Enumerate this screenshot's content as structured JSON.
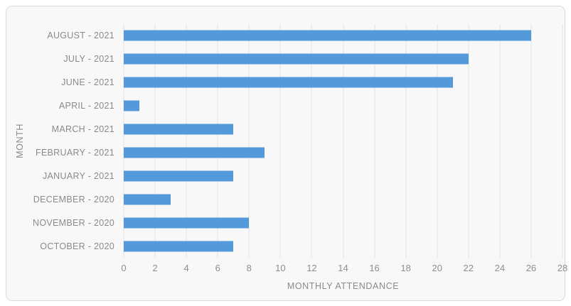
{
  "chart_data": {
    "type": "bar",
    "orientation": "horizontal",
    "title": "",
    "xlabel": "MONTHLY ATTENDANCE",
    "ylabel": "MONTH",
    "categories": [
      "AUGUST - 2021",
      "JULY - 2021",
      "JUNE - 2021",
      "APRIL - 2021",
      "MARCH - 2021",
      "FEBRUARY - 2021",
      "JANUARY - 2021",
      "DECEMBER - 2020",
      "NOVEMBER - 2020",
      "OCTOBER - 2020"
    ],
    "values": [
      26,
      22,
      21,
      1,
      7,
      9,
      7,
      3,
      8,
      7
    ],
    "xlim": [
      0,
      28
    ],
    "xticks": [
      0,
      2,
      4,
      6,
      8,
      10,
      12,
      14,
      16,
      18,
      20,
      22,
      24,
      26,
      28
    ],
    "grid": "vertical",
    "legend": "none",
    "bar_color": "#549adb",
    "gridline_color": "#e2e2e2",
    "label_color": "#8a8a8a",
    "card_background": "#f8f8f8",
    "card_border_color": "#dcdcdc",
    "page_background": "#ffffff"
  }
}
